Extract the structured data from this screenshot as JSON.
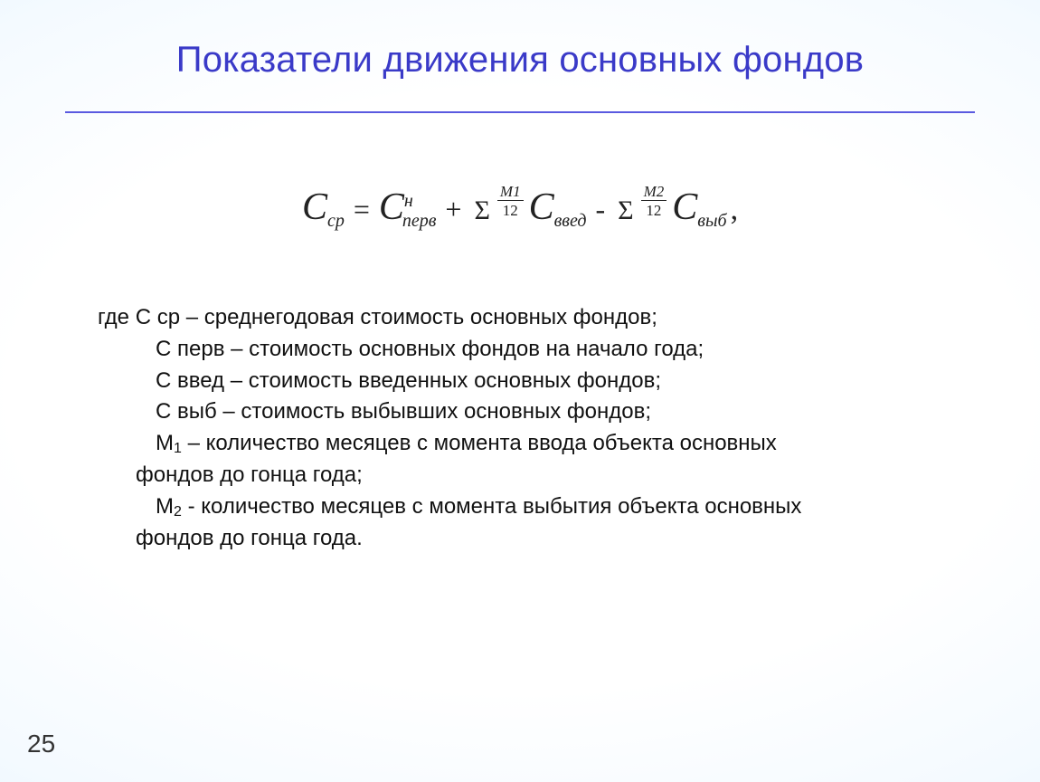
{
  "title": {
    "text": "Показатели движения основных фондов",
    "color": "#3a3ac8",
    "fontsize": 40
  },
  "hr_color": "#5a5ae0",
  "formula": {
    "C": "C",
    "cp": "ср",
    "eq": "=",
    "perv_sup": "н",
    "perv_sub": "перв",
    "plus": "+",
    "sigma": "Σ",
    "m1_num": "M1",
    "m1_den": "12",
    "vved": "введ",
    "minus": "-",
    "m2_num": "M2",
    "m2_den": "12",
    "vyb": "выб",
    "comma": ","
  },
  "defs": {
    "lead": "где ",
    "d1_sym": "С ср",
    "d1_txt": " – среднегодовая стоимость основных фондов;",
    "d2_sym": "С перв",
    "d2_txt": " – стоимость основных фондов на начало года;",
    "d3_sym": "С введ",
    "d3_txt": " – стоимость введенных основных фондов;",
    "d4_sym": "С выб",
    "d4_txt": " – стоимость выбывших основных фондов;",
    "d5_sym": "М",
    "d5_sub": "1",
    "d5_txt_a": " – количество месяцев с момента ввода объекта основных",
    "d5_txt_b": "фондов до гонца года;",
    "d6_sym": "М",
    "d6_sub": "2",
    "d6_txt_a": " - количество месяцев с момента выбытия объекта основных",
    "d6_txt_b": "фондов до гонца года."
  },
  "page_number": "25"
}
